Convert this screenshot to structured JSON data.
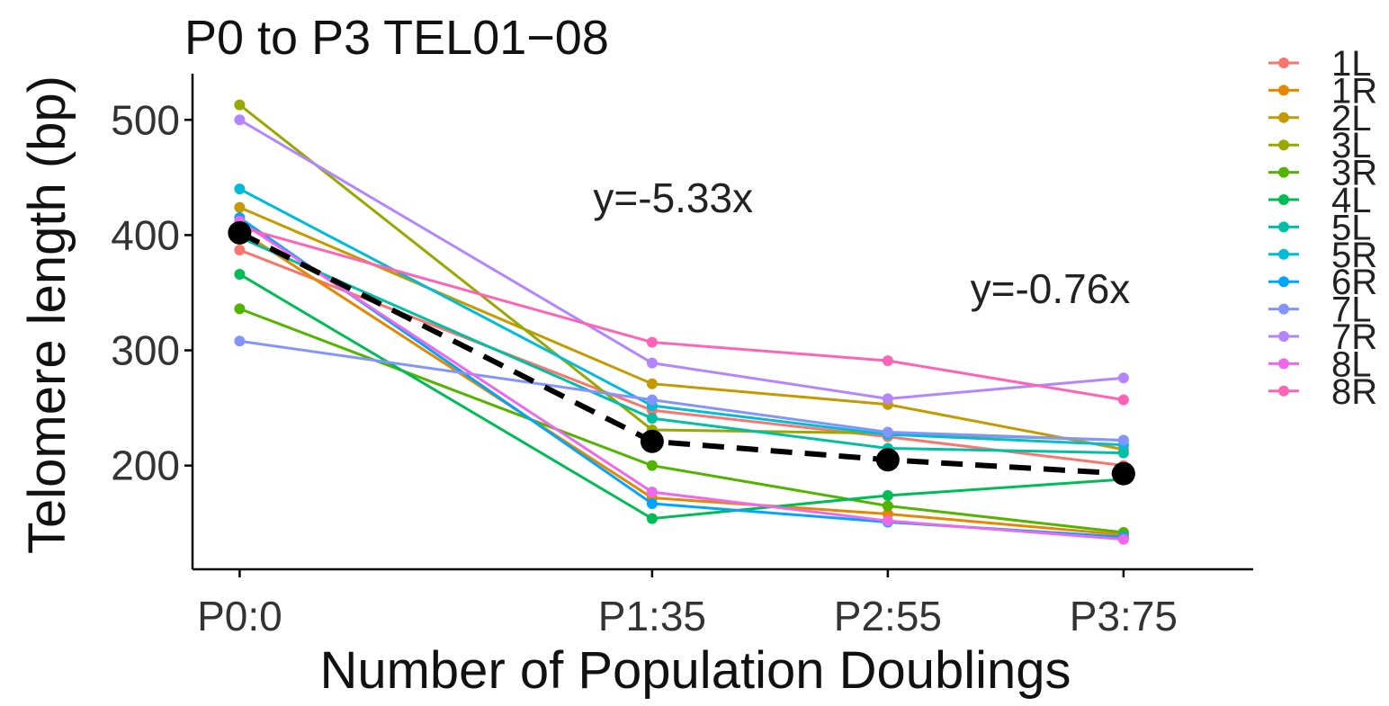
{
  "chart_data": {
    "type": "line",
    "title": "P0 to P3 TEL01−08",
    "xlabel": "Number of Population Doublings",
    "ylabel": "Telomere length (bp)",
    "categories": [
      "P0:0",
      "P1:35",
      "P2:55",
      "P3:75"
    ],
    "x": [
      0,
      35,
      55,
      75
    ],
    "xlim": [
      -4,
      86
    ],
    "ylim": [
      110,
      540
    ],
    "yticks": [
      200,
      300,
      400,
      500
    ],
    "grid": false,
    "legend_position": "right",
    "series": [
      {
        "name": "1L",
        "color": "#F8766D",
        "values": [
          387,
          248,
          225,
          200
        ]
      },
      {
        "name": "1R",
        "color": "#E58700",
        "values": [
          404,
          172,
          158,
          140
        ]
      },
      {
        "name": "2L",
        "color": "#C49A00",
        "values": [
          424,
          271,
          253,
          214
        ]
      },
      {
        "name": "3L",
        "color": "#99A800",
        "values": [
          513,
          231,
          228,
          222
        ]
      },
      {
        "name": "3R",
        "color": "#53B400",
        "values": [
          336,
          200,
          165,
          142
        ]
      },
      {
        "name": "4L",
        "color": "#00BC56",
        "values": [
          366,
          154,
          174,
          188
        ]
      },
      {
        "name": "5L",
        "color": "#00BFA4",
        "values": [
          398,
          241,
          215,
          211
        ]
      },
      {
        "name": "5R",
        "color": "#00BCD8",
        "values": [
          440,
          252,
          227,
          218
        ]
      },
      {
        "name": "6R",
        "color": "#00A5FF",
        "values": [
          415,
          167,
          151,
          138
        ]
      },
      {
        "name": "7L",
        "color": "#8494FF",
        "values": [
          308,
          257,
          229,
          222
        ]
      },
      {
        "name": "7R",
        "color": "#B385FF",
        "values": [
          500,
          289,
          258,
          276
        ]
      },
      {
        "name": "8L",
        "color": "#EF67EB",
        "values": [
          412,
          177,
          152,
          136
        ]
      },
      {
        "name": "8R",
        "color": "#FF63B6",
        "values": [
          407,
          307,
          291,
          257
        ]
      }
    ],
    "mean_series": {
      "values": [
        402,
        221,
        205,
        193
      ],
      "color": "#000000",
      "style": "dashed"
    },
    "annotations": [
      {
        "text": "y=-5.33x",
        "x": 30,
        "y": 420
      },
      {
        "text": "y=-0.76x",
        "x": 62,
        "y": 341
      }
    ]
  }
}
